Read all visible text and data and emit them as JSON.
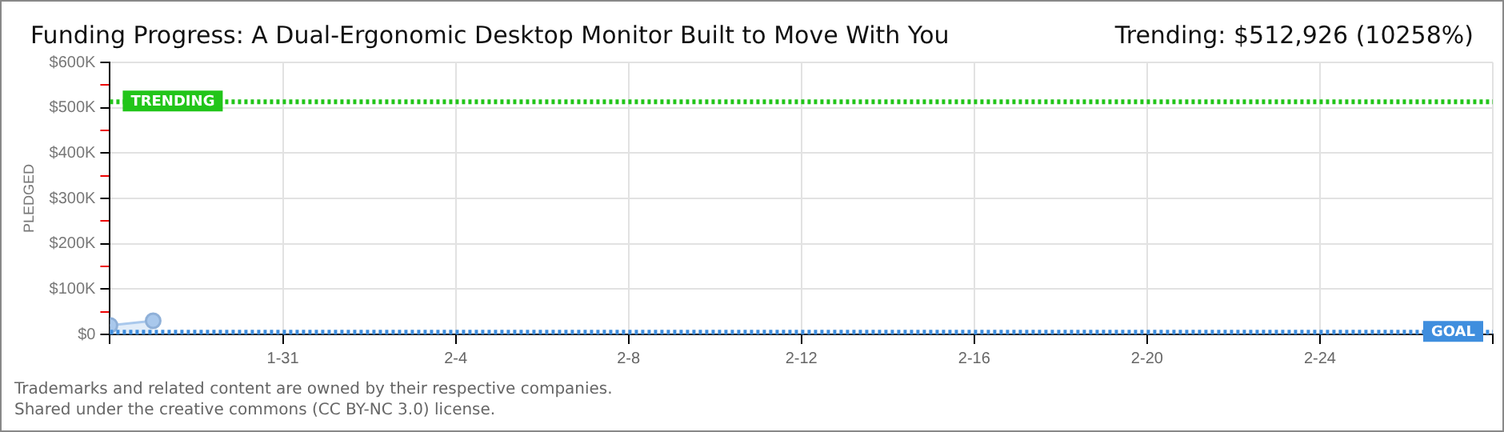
{
  "chart_data": {
    "type": "area",
    "title": "Funding Progress: A Dual-Ergonomic Desktop Monitor Built to Move With You",
    "subtitle": "Trending:  $512,926 (10258%)",
    "ylabel": "PLEDGED",
    "x": [
      "--01-27",
      "--01-28"
    ],
    "series": [
      {
        "color": "#a9c8ec",
        "values": [
          20000,
          30000
        ]
      }
    ],
    "xlim": [
      "--01-27",
      "--02-28"
    ],
    "xticks": [
      {
        "value": "--01-27",
        "label": null
      },
      {
        "value": "--01-31",
        "label": "1-31"
      },
      {
        "value": "--02-04",
        "label": "2-4"
      },
      {
        "value": "--02-08",
        "label": "2-8"
      },
      {
        "value": "--02-12",
        "label": "2-12"
      },
      {
        "value": "--02-16",
        "label": "2-16"
      },
      {
        "value": "--02-20",
        "label": "2-20"
      },
      {
        "value": "--02-24",
        "label": "2-24"
      },
      {
        "value": "--02-28",
        "label": null
      }
    ],
    "ylim": [
      0,
      600000
    ],
    "yticks": [
      {
        "value": 0,
        "label": "$0"
      },
      {
        "value": 50000,
        "label": null
      },
      {
        "value": 100000,
        "label": "$100K"
      },
      {
        "value": 150000,
        "label": null
      },
      {
        "value": 200000,
        "label": "$200K"
      },
      {
        "value": 250000,
        "label": null
      },
      {
        "value": 300000,
        "label": "$300K"
      },
      {
        "value": 350000,
        "label": null
      },
      {
        "value": 400000,
        "label": "$400K"
      },
      {
        "value": 450000,
        "label": null
      },
      {
        "value": 500000,
        "label": "$500K"
      },
      {
        "value": 550000,
        "label": null
      },
      {
        "value": 600000,
        "label": "$600K"
      }
    ],
    "ref_lines": [
      {
        "axis": "y",
        "value": 512926,
        "label": "TRENDING",
        "color": "#22c51a",
        "line_style": "dotted"
      },
      {
        "axis": "y",
        "value": 5000,
        "label": "GOAL",
        "color": "#3f8ede",
        "line_style": "dotted"
      }
    ],
    "grid": true,
    "marker": "circle",
    "legend": false,
    "annotations": [
      "Trademarks and related content are owned by their respective companies.",
      "Shared under the creative commons (CC BY-NC 3.0) license."
    ]
  }
}
